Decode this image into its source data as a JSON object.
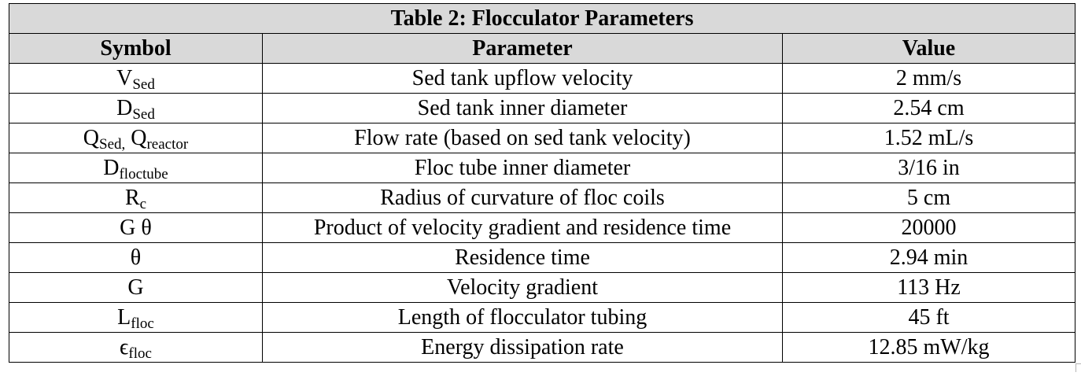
{
  "table": {
    "title": "Table 2: Flocculator Parameters",
    "headers": {
      "symbol": "Symbol",
      "parameter": "Parameter",
      "value": "Value"
    },
    "rows": [
      {
        "symbol_main": "V",
        "symbol_sub": "Sed",
        "symbol_main2": "",
        "symbol_sub2": "",
        "parameter": "Sed tank upflow velocity",
        "value": "2 mm/s"
      },
      {
        "symbol_main": "D",
        "symbol_sub": "Sed",
        "symbol_main2": "",
        "symbol_sub2": "",
        "parameter": "Sed tank inner diameter",
        "value": "2.54 cm"
      },
      {
        "symbol_main": "Q",
        "symbol_sub": "Sed,",
        "symbol_main2": " Q",
        "symbol_sub2": "reactor",
        "parameter": "Flow rate (based on sed tank velocity)",
        "value": "1.52 mL/s"
      },
      {
        "symbol_main": "D",
        "symbol_sub": "floctube",
        "symbol_main2": "",
        "symbol_sub2": "",
        "parameter": "Floc tube inner diameter",
        "value": "3/16 in"
      },
      {
        "symbol_main": "R",
        "symbol_sub": "c",
        "symbol_main2": "",
        "symbol_sub2": "",
        "parameter": "Radius of curvature of floc coils",
        "value": "5 cm"
      },
      {
        "symbol_main": "G θ",
        "symbol_sub": "",
        "symbol_main2": "",
        "symbol_sub2": "",
        "parameter": "Product of velocity gradient and residence time",
        "value": "20000"
      },
      {
        "symbol_main": "θ",
        "symbol_sub": "",
        "symbol_main2": "",
        "symbol_sub2": "",
        "parameter": "Residence time",
        "value": "2.94 min"
      },
      {
        "symbol_main": "G",
        "symbol_sub": "",
        "symbol_main2": "",
        "symbol_sub2": "",
        "parameter": "Velocity gradient",
        "value": "113 Hz"
      },
      {
        "symbol_main": "L",
        "symbol_sub": "floc",
        "symbol_main2": "",
        "symbol_sub2": "",
        "parameter": "Length of flocculator tubing",
        "value": "45 ft"
      },
      {
        "symbol_main": "ϵ",
        "symbol_sub": "floc",
        "symbol_main2": "",
        "symbol_sub2": "",
        "parameter": "Energy dissipation rate",
        "value": "12.85 mW/kg"
      }
    ]
  }
}
